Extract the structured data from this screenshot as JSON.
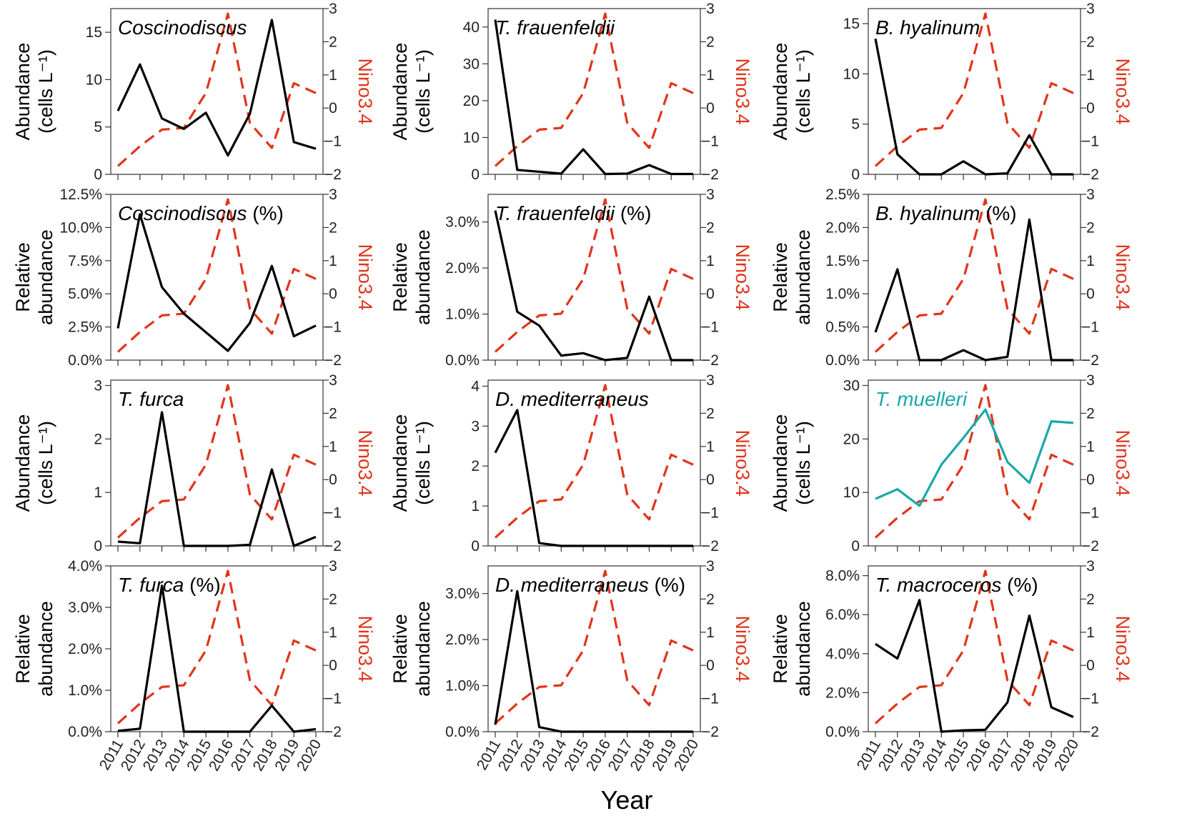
{
  "colors": {
    "species": "#000000",
    "nino": "#e0351b",
    "highlight": "#1aa8a8",
    "axis": "#333333"
  },
  "x_axis": {
    "label": "Year",
    "years": [
      2011,
      2012,
      2013,
      2014,
      2015,
      2016,
      2017,
      2018,
      2019,
      2020
    ]
  },
  "nino34": {
    "label": "Nino3.4",
    "range": [
      -2,
      3
    ],
    "ticks": [
      -2,
      -1,
      0,
      1,
      2,
      3
    ],
    "values": [
      -1.75,
      -1.15,
      -0.65,
      -0.6,
      0.45,
      2.85,
      -0.45,
      -1.2,
      0.75,
      0.45
    ]
  },
  "chart_data": [
    {
      "type": "line",
      "title_italic": "Coscinodiscus",
      "title_suffix": "",
      "color_key": "species",
      "ylabel": [
        "Abundance",
        "(cells L⁻¹)"
      ],
      "ylim": [
        0,
        17.5
      ],
      "yticks": [
        0,
        5,
        10,
        15
      ],
      "ytick_labels": [
        "0",
        "5",
        "10",
        "15"
      ],
      "values": [
        6.7,
        11.6,
        5.9,
        4.8,
        6.5,
        2.0,
        6.4,
        16.3,
        3.4,
        2.7
      ]
    },
    {
      "type": "line",
      "title_italic": "T. frauenfeldii",
      "title_suffix": "",
      "color_key": "species",
      "ylabel": [
        "Abundance",
        "(cells L⁻¹)"
      ],
      "ylim": [
        0,
        45
      ],
      "yticks": [
        0,
        10,
        20,
        30,
        40
      ],
      "ytick_labels": [
        "0",
        "10",
        "20",
        "30",
        "40"
      ],
      "values": [
        42,
        1.2,
        0.7,
        0.2,
        6.8,
        0.1,
        0.2,
        2.5,
        0.1,
        0.1
      ]
    },
    {
      "type": "line",
      "title_italic": "B. hyalinum",
      "title_suffix": "",
      "color_key": "species",
      "ylabel": [
        "Abundance",
        "(cells L⁻¹)"
      ],
      "ylim": [
        0,
        16.5
      ],
      "yticks": [
        0,
        5,
        10,
        15
      ],
      "ytick_labels": [
        "0",
        "5",
        "10",
        "15"
      ],
      "values": [
        13.5,
        2.0,
        0.0,
        0.0,
        1.3,
        0.0,
        0.1,
        3.9,
        0.0,
        0.0
      ]
    },
    {
      "type": "line",
      "title_italic": "Coscinodiscus",
      "title_suffix": " (%)",
      "color_key": "species",
      "ylabel": [
        "Relative",
        "abundance"
      ],
      "ylim": [
        0,
        12.5
      ],
      "yticks": [
        0,
        2.5,
        5,
        7.5,
        10,
        12.5
      ],
      "ytick_labels": [
        "0.0%",
        "2.5%",
        "5.0%",
        "7.5%",
        "10.0%",
        "12.5%"
      ],
      "values": [
        2.4,
        11.0,
        5.5,
        3.5,
        2.1,
        0.7,
        2.8,
        7.1,
        1.8,
        2.6
      ]
    },
    {
      "type": "line",
      "title_italic": "T. frauenfeldii",
      "title_suffix": " (%)",
      "color_key": "species",
      "ylabel": [
        "Relative",
        "abundance"
      ],
      "ylim": [
        0,
        3.6
      ],
      "yticks": [
        0,
        1,
        2,
        3
      ],
      "ytick_labels": [
        "0.0%",
        "1.0%",
        "2.0%",
        "3.0%"
      ],
      "values": [
        3.25,
        1.05,
        0.75,
        0.1,
        0.15,
        0.0,
        0.05,
        1.38,
        0.0,
        0.0
      ]
    },
    {
      "type": "line",
      "title_italic": "B. hyalinum",
      "title_suffix": " (%)",
      "color_key": "species",
      "ylabel": [
        "Relative",
        "abundance"
      ],
      "ylim": [
        0,
        2.5
      ],
      "yticks": [
        0,
        0.5,
        1,
        1.5,
        2,
        2.5
      ],
      "ytick_labels": [
        "0.0%",
        "0.5%",
        "1.0%",
        "1.5%",
        "2.0%",
        "2.5%"
      ],
      "values": [
        0.42,
        1.37,
        0.0,
        0.0,
        0.15,
        0.0,
        0.05,
        2.12,
        0.0,
        0.0
      ]
    },
    {
      "type": "line",
      "title_italic": "T. furca",
      "title_suffix": "",
      "color_key": "species",
      "ylabel": [
        "Abundance",
        "(cells L⁻¹)"
      ],
      "ylim": [
        0,
        3.1
      ],
      "yticks": [
        0,
        1,
        2,
        3
      ],
      "ytick_labels": [
        "0",
        "1",
        "2",
        "3"
      ],
      "values": [
        0.08,
        0.05,
        2.5,
        0.0,
        0.0,
        0.0,
        0.02,
        1.43,
        0.0,
        0.17
      ]
    },
    {
      "type": "line",
      "title_italic": "D. mediterraneus",
      "title_suffix": "",
      "color_key": "species",
      "ylabel": [
        "Abundance",
        "(cells L⁻¹)"
      ],
      "ylim": [
        0,
        4.15
      ],
      "yticks": [
        0,
        1,
        2,
        3,
        4
      ],
      "ytick_labels": [
        "0",
        "1",
        "2",
        "3",
        "4"
      ],
      "values": [
        2.33,
        3.4,
        0.07,
        0.0,
        0.0,
        0.0,
        0.0,
        0.0,
        0.0,
        0.0
      ]
    },
    {
      "type": "line",
      "title_italic": "T. muelleri",
      "title_suffix": "",
      "color_key": "highlight",
      "ylabel": [
        "Abundance",
        "(cells L⁻¹)"
      ],
      "ylim": [
        0,
        31
      ],
      "yticks": [
        0,
        10,
        20,
        30
      ],
      "ytick_labels": [
        "0",
        "10",
        "20",
        "30"
      ],
      "values": [
        8.8,
        10.6,
        7.5,
        15.2,
        20.2,
        25.5,
        15.7,
        11.8,
        23.3,
        23.0
      ]
    },
    {
      "type": "line",
      "title_italic": "T. furca",
      "title_suffix": " (%)",
      "color_key": "species",
      "ylabel": [
        "Relative",
        "abundance"
      ],
      "ylim": [
        0,
        4.0
      ],
      "yticks": [
        0,
        1,
        2,
        3,
        4
      ],
      "ytick_labels": [
        "0.0%",
        "1.0%",
        "2.0%",
        "3.0%",
        "4.0%"
      ],
      "values": [
        0.02,
        0.07,
        3.52,
        0.0,
        0.0,
        0.0,
        0.0,
        0.63,
        0.0,
        0.06
      ]
    },
    {
      "type": "line",
      "title_italic": "D. mediterraneus",
      "title_suffix": " (%)",
      "color_key": "species",
      "ylabel": [
        "Relative",
        "abundance"
      ],
      "ylim": [
        0,
        3.6
      ],
      "yticks": [
        0,
        1,
        2,
        3
      ],
      "ytick_labels": [
        "0.0%",
        "1.0%",
        "2.0%",
        "3.0%"
      ],
      "values": [
        0.15,
        3.05,
        0.1,
        0.0,
        0.0,
        0.0,
        0.0,
        0.0,
        0.0,
        0.0
      ]
    },
    {
      "type": "line",
      "title_italic": "T. macroceros",
      "title_suffix": " (%)",
      "color_key": "species",
      "ylabel": [
        "Relative",
        "abundance"
      ],
      "ylim": [
        0,
        8.5
      ],
      "yticks": [
        0,
        2,
        4,
        6,
        8
      ],
      "ytick_labels": [
        "0.0%",
        "2.0%",
        "4.0%",
        "6.0%",
        "8.0%"
      ],
      "values": [
        4.5,
        3.75,
        6.75,
        0.0,
        0.07,
        0.1,
        1.5,
        5.95,
        1.25,
        0.75
      ]
    }
  ]
}
